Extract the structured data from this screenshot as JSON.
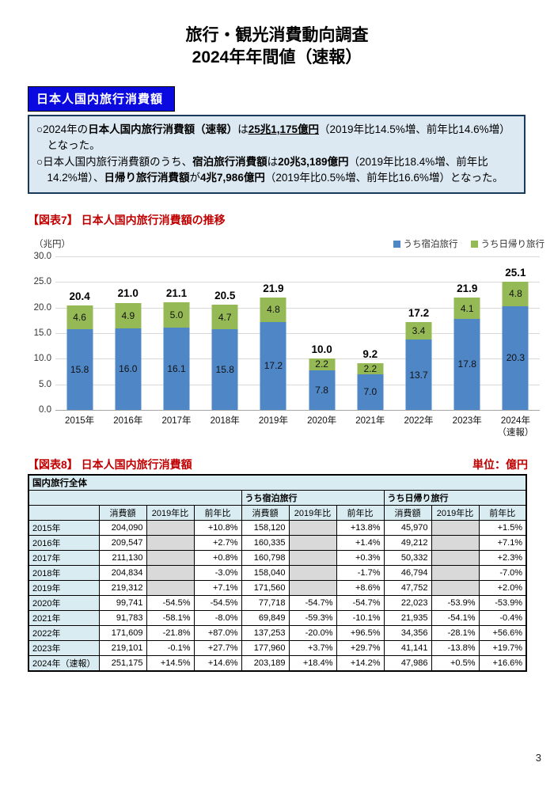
{
  "page": {
    "title_line1": "旅行・観光消費動向調査",
    "title_line2": "2024年年間値（速報）",
    "page_number": "3"
  },
  "section_badge": "日本人国内旅行消費額",
  "summary": {
    "bullets": [
      {
        "segments": [
          {
            "t": "○2024年の"
          },
          {
            "t": "日本人国内旅行消費額（速報）",
            "b": true
          },
          {
            "t": "は"
          },
          {
            "t": "25兆1,175億円",
            "b": true,
            "u": true
          },
          {
            "t": "（2019年比14.5%増、前年比14.6%増）となった。"
          }
        ]
      },
      {
        "segments": [
          {
            "t": "○日本人国内旅行消費額のうち、"
          },
          {
            "t": "宿泊旅行消費額",
            "b": true
          },
          {
            "t": "は"
          },
          {
            "t": "20兆3,189億円",
            "b": true
          },
          {
            "t": "（2019年比18.4%増、前年比14.2%増）、"
          },
          {
            "t": "日帰り旅行消費額",
            "b": true
          },
          {
            "t": "が"
          },
          {
            "t": "4兆7,986億円",
            "b": true
          },
          {
            "t": "（2019年比0.5%増、前年比16.6%増）となった。"
          }
        ]
      }
    ]
  },
  "figure7": {
    "heading": "【図表7】 日本人国内旅行消費額の推移",
    "unit_label": "（兆円）"
  },
  "chart_data": {
    "type": "bar",
    "stacked": true,
    "title": "日本人国内旅行消費額の推移",
    "ylabel": "（兆円）",
    "categories": [
      "2015年",
      "2016年",
      "2017年",
      "2018年",
      "2019年",
      "2020年",
      "2021年",
      "2022年",
      "2023年",
      "2024年（速報）"
    ],
    "series": [
      {
        "name": "うち宿泊旅行",
        "color": "#4e86c6",
        "values": [
          15.8,
          16.0,
          16.1,
          15.8,
          17.2,
          7.8,
          7.0,
          13.7,
          17.8,
          20.3
        ]
      },
      {
        "name": "うち日帰り旅行",
        "color": "#95b954",
        "values": [
          4.6,
          4.9,
          5.0,
          4.7,
          4.8,
          2.2,
          2.2,
          3.4,
          4.1,
          4.8
        ]
      }
    ],
    "totals": [
      20.4,
      21.0,
      21.1,
      20.5,
      21.9,
      10.0,
      9.2,
      17.2,
      21.9,
      25.1
    ],
    "ylim": [
      0,
      30
    ],
    "yticks": [
      0,
      5,
      10,
      15,
      20,
      25,
      30
    ],
    "grid": true,
    "legend_position": "top-right"
  },
  "figure8": {
    "heading": "【図表8】 日本人国内旅行消費額",
    "unit_note": "単位：億円",
    "table": {
      "group_all": "国内旅行全体",
      "groups": [
        "うち宿泊旅行",
        "うち日帰り旅行"
      ],
      "col_headers": [
        "消費額",
        "2019年比",
        "前年比"
      ],
      "rows": [
        {
          "year": "2015年",
          "cells": [
            "204,090",
            "",
            "+10.8%",
            "158,120",
            "",
            "+13.8%",
            "45,970",
            "",
            "+1.5%"
          ]
        },
        {
          "year": "2016年",
          "cells": [
            "209,547",
            "",
            "+2.7%",
            "160,335",
            "",
            "+1.4%",
            "49,212",
            "",
            "+7.1%"
          ]
        },
        {
          "year": "2017年",
          "cells": [
            "211,130",
            "",
            "+0.8%",
            "160,798",
            "",
            "+0.3%",
            "50,332",
            "",
            "+2.3%"
          ]
        },
        {
          "year": "2018年",
          "cells": [
            "204,834",
            "",
            "-3.0%",
            "158,040",
            "",
            "-1.7%",
            "46,794",
            "",
            "-7.0%"
          ]
        },
        {
          "year": "2019年",
          "cells": [
            "219,312",
            "",
            "+7.1%",
            "171,560",
            "",
            "+8.6%",
            "47,752",
            "",
            "+2.0%"
          ]
        },
        {
          "year": "2020年",
          "cells": [
            "99,741",
            "-54.5%",
            "-54.5%",
            "77,718",
            "-54.7%",
            "-54.7%",
            "22,023",
            "-53.9%",
            "-53.9%"
          ]
        },
        {
          "year": "2021年",
          "cells": [
            "91,783",
            "-58.1%",
            "-8.0%",
            "69,849",
            "-59.3%",
            "-10.1%",
            "21,935",
            "-54.1%",
            "-0.4%"
          ]
        },
        {
          "year": "2022年",
          "cells": [
            "171,609",
            "-21.8%",
            "+87.0%",
            "137,253",
            "-20.0%",
            "+96.5%",
            "34,356",
            "-28.1%",
            "+56.6%"
          ]
        },
        {
          "year": "2023年",
          "cells": [
            "219,101",
            "-0.1%",
            "+27.7%",
            "177,960",
            "+3.7%",
            "+29.7%",
            "41,141",
            "-13.8%",
            "+19.7%"
          ]
        },
        {
          "year": "2024年（速報）",
          "cells": [
            "251,175",
            "+14.5%",
            "+14.6%",
            "203,189",
            "+18.4%",
            "+14.2%",
            "47,986",
            "+0.5%",
            "+16.6%"
          ]
        }
      ]
    }
  }
}
